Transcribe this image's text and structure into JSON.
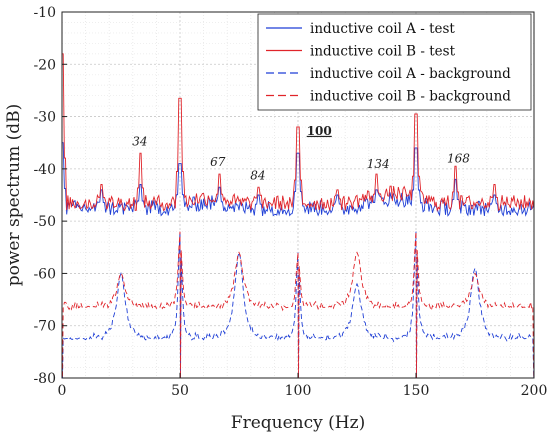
{
  "chart_data": {
    "type": "line",
    "xlabel": "Frequency (Hz)",
    "ylabel": "power spectrum (dB)",
    "xlim": [
      0,
      200
    ],
    "ylim": [
      -80,
      -10
    ],
    "xticks": [
      "0",
      "50",
      "100",
      "150",
      "200"
    ],
    "yticks": [
      "-10",
      "-20",
      "-30",
      "-40",
      "-50",
      "-60",
      "-70",
      "-80"
    ],
    "grid": true,
    "legend_position": "top-right",
    "colors": {
      "blue": "#1f3fd6",
      "red": "#e0242a"
    },
    "series": [
      {
        "name": "inductive coil A  - test",
        "color": "#1f3fd6",
        "style": "solid",
        "base": -47.5,
        "peaks": [
          [
            0,
            -35
          ],
          [
            16.7,
            -44
          ],
          [
            33.3,
            -43
          ],
          [
            50,
            -39
          ],
          [
            66.7,
            -43.5
          ],
          [
            83.3,
            -45
          ],
          [
            100,
            -37
          ],
          [
            116.7,
            -45
          ],
          [
            133.3,
            -44
          ],
          [
            150,
            -36
          ],
          [
            166.7,
            -42
          ],
          [
            183.3,
            -45
          ]
        ]
      },
      {
        "name": "inductive coil B  - test",
        "color": "#e0242a",
        "style": "solid",
        "base": -46.5,
        "peaks": [
          [
            0,
            -18
          ],
          [
            16.7,
            -43
          ],
          [
            33.3,
            -37
          ],
          [
            50,
            -26.5
          ],
          [
            66.7,
            -41
          ],
          [
            83.3,
            -43.5
          ],
          [
            100,
            -32
          ],
          [
            116.7,
            -44
          ],
          [
            133.3,
            -41
          ],
          [
            150,
            -29.5
          ],
          [
            166.7,
            -39.5
          ],
          [
            183.3,
            -43
          ]
        ]
      },
      {
        "name": "inductive coil A  - background",
        "color": "#1f3fd6",
        "style": "dashed",
        "base": -73,
        "peaks": [
          [
            25,
            -60
          ],
          [
            50,
            -52
          ],
          [
            75,
            -56
          ],
          [
            100,
            -56
          ],
          [
            125,
            -62
          ],
          [
            150,
            -52
          ],
          [
            175,
            -59
          ]
        ]
      },
      {
        "name": "inductive coil B  - background",
        "color": "#e0242a",
        "style": "dashed",
        "base": -67,
        "peaks": [
          [
            25,
            -60
          ],
          [
            50,
            -52
          ],
          [
            75,
            -56
          ],
          [
            100,
            -56
          ],
          [
            125,
            -56
          ],
          [
            150,
            -52
          ],
          [
            175,
            -60
          ]
        ]
      }
    ],
    "annotations": [
      {
        "text": "34",
        "x": 33,
        "y": -35.5,
        "bold": false
      },
      {
        "text": "67",
        "x": 66,
        "y": -39.5,
        "bold": false
      },
      {
        "text": "84",
        "x": 83,
        "y": -42,
        "bold": false
      },
      {
        "text": "100",
        "x": 109,
        "y": -33.5,
        "bold": true
      },
      {
        "text": "134",
        "x": 134,
        "y": -39.8,
        "bold": false
      },
      {
        "text": "168",
        "x": 168,
        "y": -38.8,
        "bold": false
      }
    ]
  }
}
